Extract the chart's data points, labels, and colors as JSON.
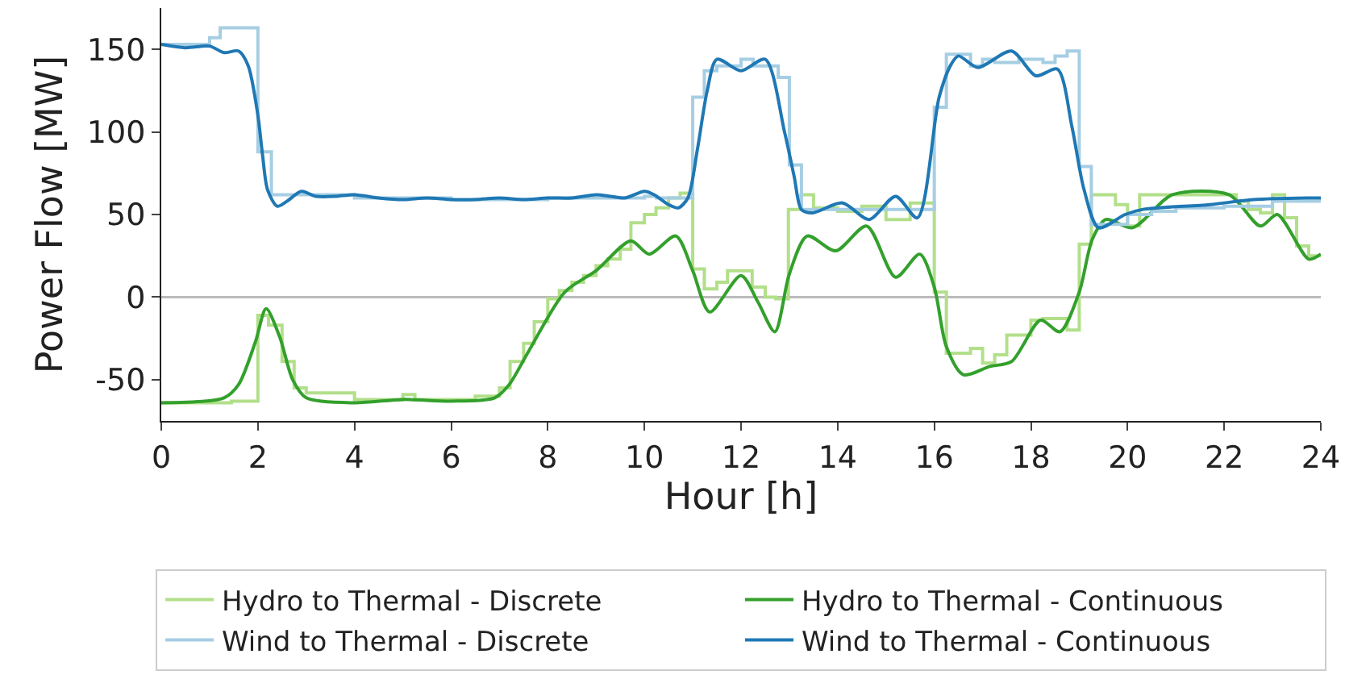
{
  "chart_data": {
    "type": "line",
    "xlabel": "Hour [h]",
    "ylabel": "Power Flow [MW]",
    "xlim": [
      0,
      24
    ],
    "xticks": [
      0,
      2,
      4,
      6,
      8,
      10,
      12,
      14,
      16,
      18,
      20,
      22,
      24
    ],
    "ylim": [
      -75,
      175
    ],
    "yticks": [
      -50,
      0,
      50,
      100,
      150
    ],
    "grid": false,
    "legend": "bottom",
    "marker": "none",
    "line_style": "solid",
    "ref_lines": [
      {
        "axis": "y",
        "value": 0,
        "color": "#bbbbbb"
      }
    ],
    "series": [
      {
        "name": "Hydro to Thermal - Discrete",
        "type": "step",
        "color": "#b2df8a",
        "x": [
          0,
          1.45,
          2,
          2.22,
          2.5,
          2.75,
          3,
          4,
          5,
          5.25,
          6.5,
          7,
          7.22,
          7.5,
          7.72,
          8,
          8.24,
          8.5,
          8.74,
          9,
          9.24,
          9.5,
          9.72,
          10,
          10.24,
          10.5,
          10.74,
          11,
          11.24,
          11.5,
          11.72,
          12.23,
          12.5,
          12.72,
          12.98,
          13.24,
          13.5,
          14,
          14.5,
          15,
          15.5,
          16,
          16.25,
          16.75,
          17,
          17.25,
          17.5,
          18,
          18.25,
          18.75,
          19,
          19.25,
          19.75,
          20,
          20.25,
          22.25,
          22.5,
          22.75,
          23,
          23.25,
          23.5,
          23.75,
          24
        ],
        "values": [
          -64,
          -63,
          -11,
          -17,
          -39,
          -55,
          -58,
          -62,
          -59,
          -62,
          -60,
          -55,
          -39,
          -28,
          -15,
          -1,
          4,
          9,
          13,
          19,
          23,
          29,
          45,
          50,
          54,
          60,
          63,
          17,
          5,
          9,
          16,
          6,
          0,
          -1,
          53,
          62,
          54,
          52,
          55,
          47,
          57,
          3,
          -34,
          -31,
          -40,
          -35,
          -23,
          -14,
          -13,
          -20,
          32,
          62,
          56,
          43,
          62,
          58,
          53,
          51,
          62,
          48,
          31,
          25,
          25
        ]
      },
      {
        "name": "Hydro to Thermal - Continuous",
        "color": "#33a02c",
        "x": [
          0,
          1.3,
          1.6,
          1.95,
          2.17,
          2.45,
          2.72,
          3,
          4,
          5,
          6,
          6.9,
          7.2,
          7.6,
          8.35,
          9,
          9.72,
          10.1,
          10.65,
          11,
          11.35,
          12,
          12.35,
          12.7,
          13,
          13.37,
          13.96,
          14.6,
          15.2,
          15.7,
          16,
          16.25,
          16.6,
          17.15,
          17.6,
          18.2,
          18.6,
          19,
          19.27,
          19.55,
          20.1,
          20.93,
          22.1,
          22.75,
          23.1,
          23.75,
          24
        ],
        "values": [
          -64,
          -61,
          -53,
          -27,
          -7,
          -24,
          -50,
          -61,
          -64,
          -62,
          -63,
          -61,
          -53,
          -33,
          3,
          16,
          34,
          26,
          37,
          16,
          -9,
          13,
          -3,
          -21,
          14,
          37,
          28,
          43,
          12,
          26,
          6,
          -30,
          -47,
          -42,
          -39,
          -14,
          -21,
          3,
          35,
          47,
          42,
          62,
          62,
          43,
          50,
          23,
          26
        ]
      },
      {
        "name": "Wind to Thermal - Discrete",
        "type": "step",
        "color": "#a6cee3",
        "x": [
          0,
          1,
          1.22,
          2,
          2.28,
          3,
          4,
          6,
          8,
          10,
          10.25,
          11,
          11.24,
          11.5,
          12,
          12.25,
          12.77,
          13,
          13.25,
          16,
          16.25,
          16.75,
          17,
          17.25,
          17.75,
          18.25,
          18.5,
          18.75,
          19,
          19.25,
          20,
          20.5,
          21,
          22,
          23,
          24
        ],
        "values": [
          153,
          157,
          163,
          88,
          62,
          62,
          60,
          59,
          60,
          61,
          60,
          121,
          137,
          140,
          144,
          140,
          133,
          80,
          53,
          115,
          147,
          140,
          144,
          142,
          144,
          142,
          146,
          149,
          79,
          44,
          50,
          52,
          54,
          55,
          58,
          60
        ]
      },
      {
        "name": "Wind to Thermal - Continuous",
        "color": "#1f78b4",
        "x": [
          0,
          0.5,
          1,
          1.3,
          1.6,
          1.8,
          2,
          2.1,
          2.2,
          2.4,
          2.6,
          2.9,
          3.2,
          3.6,
          4,
          4.5,
          5,
          5.5,
          6,
          6.5,
          7,
          7.5,
          8,
          8.5,
          9,
          9.3,
          9.6,
          10,
          10.2,
          10.5,
          10.7,
          10.9,
          11.1,
          11.3,
          11.5,
          12,
          12.5,
          12.9,
          13.1,
          13.25,
          13.48,
          14.1,
          14.65,
          15.2,
          15.65,
          16.1,
          16.35,
          16.5,
          16.9,
          17.6,
          18.1,
          18.55,
          18.85,
          19.1,
          19.4,
          19.95,
          20.3,
          21.7,
          22.6,
          23.7,
          24
        ],
        "values": [
          153,
          151,
          152,
          148,
          149,
          140,
          110,
          85,
          65,
          55,
          58,
          64,
          61,
          61,
          62,
          60,
          59,
          60,
          59,
          59,
          60,
          59,
          60,
          60,
          62,
          61,
          60,
          64,
          62,
          56,
          54,
          60,
          90,
          125,
          144,
          137,
          144,
          100,
          73,
          53,
          51,
          57,
          47,
          61,
          48,
          121,
          141,
          146,
          139,
          149,
          134,
          138,
          103,
          65,
          42,
          50,
          53,
          56,
          59,
          60,
          60
        ]
      }
    ]
  }
}
